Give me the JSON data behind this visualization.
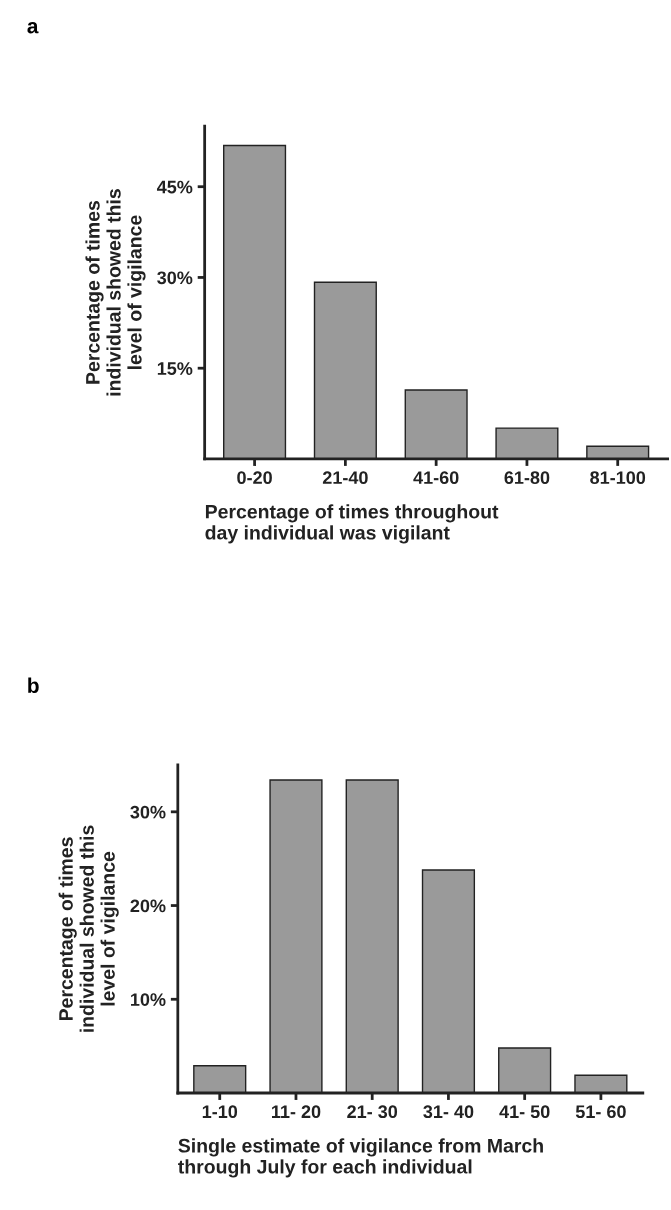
{
  "chart_data": [
    {
      "type": "bar",
      "annotations": [
        "a"
      ],
      "xlabel": "Percentage of times throughout\nday individual was vigilant",
      "ylabel": "Percentage of times\nindividual showed this\nlevel of vigilance",
      "categories": [
        "0-20",
        "21-40",
        "41-60",
        "61-80",
        "81-100"
      ],
      "values": [
        51.8,
        29.2,
        11.4,
        5.1,
        2.1
      ],
      "color": "#9a9a9a",
      "ylim": [
        0,
        55
      ],
      "yticks": [
        {
          "value": 15,
          "label": "15%"
        },
        {
          "value": 30,
          "label": "30%"
        },
        {
          "value": 45,
          "label": "45%"
        }
      ],
      "grid": false
    },
    {
      "type": "bar",
      "annotations": [
        "b"
      ],
      "xlabel": "Single estimate of vigilance from March\nthrough July for each individual",
      "ylabel": "Percentage of times\nindividual showed this\nlevel of vigilance",
      "categories": [
        "1-10",
        "11- 20",
        "21- 30",
        "31- 40",
        "41- 50",
        "51- 60"
      ],
      "values": [
        2.9,
        33.4,
        33.4,
        23.8,
        4.8,
        1.9
      ],
      "color": "#9a9a9a",
      "ylim": [
        0,
        35
      ],
      "yticks": [
        {
          "value": 10,
          "label": "10%"
        },
        {
          "value": 20,
          "label": "20%"
        },
        {
          "value": 30,
          "label": "30%"
        }
      ],
      "grid": false
    }
  ]
}
